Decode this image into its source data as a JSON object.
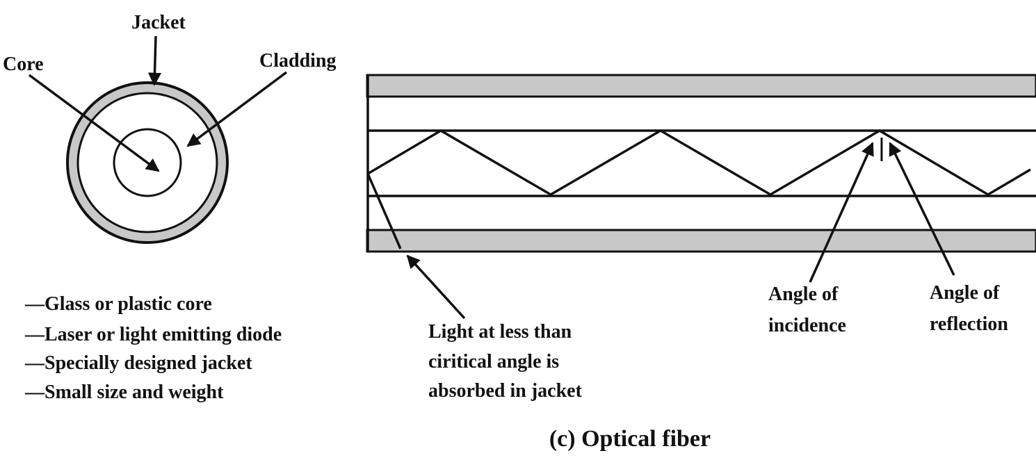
{
  "diagram": {
    "cross_section": {
      "labels": {
        "jacket": "Jacket",
        "core": "Core",
        "cladding": "Cladding"
      }
    },
    "features": [
      "—Glass or plastic core",
      "—Laser or light emitting diode",
      "—Specially designed jacket",
      "—Small size and weight"
    ],
    "longitudinal": {
      "absorbed_note": [
        "Light at less than",
        "ciritical angle is",
        "absorbed in jacket"
      ],
      "incidence_label": [
        "Angle of",
        "incidence"
      ],
      "reflection_label": [
        "Angle of",
        "reflection"
      ]
    },
    "caption": "(c) Optical fiber",
    "colors": {
      "line": "#111111",
      "jacket_fill": "#c8c8c8",
      "background": "#ffffff"
    }
  }
}
